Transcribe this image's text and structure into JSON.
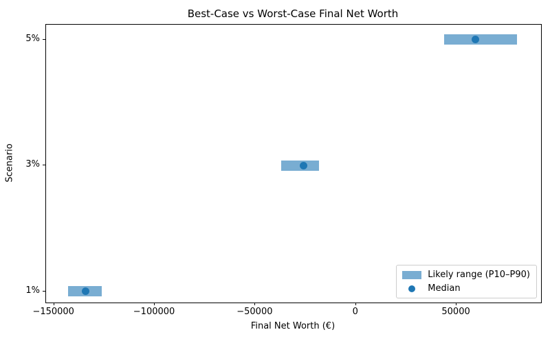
{
  "title": "Best-Case vs Worst-Case Final Net Worth",
  "colors": {
    "range_bar": "#79add2",
    "median_dot": "#1f77b4",
    "spine": "#000000",
    "legend_border": "#cccccc"
  },
  "chart_data": {
    "type": "bar",
    "subtype": "horizontal-range-bar-with-median-points",
    "title": "Best-Case vs Worst-Case Final Net Worth",
    "xlabel": "Final Net Worth (€)",
    "ylabel": "Scenario",
    "categories": [
      "1%",
      "3%",
      "5%"
    ],
    "series": [
      {
        "name": "Likely range (P10–P90)",
        "type": "range",
        "p10": [
          -143200,
          -37000,
          43700
        ],
        "p90": [
          -126400,
          -18200,
          80200
        ]
      },
      {
        "name": "Median",
        "type": "point",
        "values": [
          -134400,
          -26100,
          59500
        ]
      }
    ],
    "xlim": [
      -154000,
      92000
    ],
    "ylim": [
      -0.09,
      2.12
    ],
    "xticks": {
      "values": [
        -150000,
        -100000,
        -50000,
        0,
        50000
      ],
      "labels": [
        "−150000",
        "−100000",
        "−50000",
        "0",
        "50000"
      ]
    },
    "grid": "off",
    "legend": {
      "position": "lower right",
      "entries": [
        {
          "label": "Likely range (P10–P90)",
          "swatch": "bar"
        },
        {
          "label": "Median",
          "swatch": "dot"
        }
      ]
    }
  }
}
